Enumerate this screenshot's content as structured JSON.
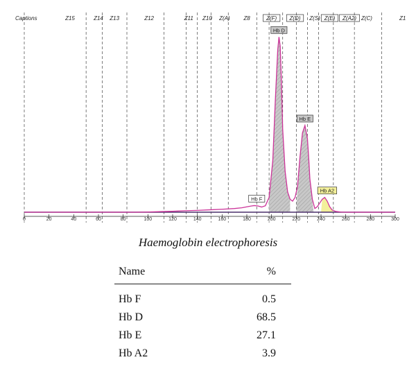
{
  "chart_data": {
    "type": "line",
    "xlim": [
      0,
      300
    ],
    "x_ticks": [
      0,
      20,
      40,
      60,
      80,
      100,
      120,
      140,
      160,
      180,
      200,
      220,
      240,
      260,
      280,
      300
    ],
    "zones": [
      {
        "label": "Captions",
        "x_center": 5,
        "framed": false
      },
      {
        "label": "Z15",
        "x_center": 37,
        "framed": false
      },
      {
        "label": "Z14",
        "x_center": 60,
        "framed": false
      },
      {
        "label": "Z13",
        "x_center": 73,
        "framed": false
      },
      {
        "label": "Z12",
        "x_center": 101,
        "framed": false
      },
      {
        "label": "Z11",
        "x_center": 133,
        "framed": false
      },
      {
        "label": "Z10",
        "x_center": 148,
        "framed": false
      },
      {
        "label": "Z(A)",
        "x_center": 162,
        "framed": false
      },
      {
        "label": "Z8",
        "x_center": 180,
        "framed": false
      },
      {
        "label": "Z(F)",
        "x_center": 200,
        "framed": true
      },
      {
        "label": "Z(D)",
        "x_center": 219,
        "framed": true
      },
      {
        "label": "Z(S)",
        "x_center": 235,
        "framed": false
      },
      {
        "label": "Z(E)",
        "x_center": 247,
        "framed": true
      },
      {
        "label": "Z(A2)",
        "x_center": 263,
        "framed": true
      },
      {
        "label": "Z(C)",
        "x_center": 277,
        "framed": false
      },
      {
        "label": "Z1",
        "x_center": 306,
        "framed": false
      }
    ],
    "zone_boundaries": [
      0,
      50,
      63,
      83,
      113,
      131,
      140,
      151,
      165,
      188,
      198,
      209,
      220,
      229,
      238,
      250,
      267,
      289
    ],
    "series": [
      {
        "x": [
          0,
          90,
          100,
          110,
          120,
          130,
          140,
          150,
          160,
          170,
          176,
          180,
          183,
          186,
          189,
          192,
          195,
          198,
          201,
          203,
          205,
          206,
          207,
          208,
          209,
          211,
          213,
          215,
          217,
          219,
          221,
          223,
          225,
          227,
          229,
          230,
          231,
          233,
          235,
          237,
          239,
          241,
          243,
          245,
          247,
          249,
          252,
          256,
          260,
          300
        ],
        "y": [
          0,
          0,
          0.1,
          0.3,
          0.5,
          0.8,
          1.0,
          1.3,
          1.6,
          2.0,
          2.4,
          2.9,
          3.3,
          3.6,
          3.4,
          2.8,
          3.5,
          8,
          28,
          60,
          88,
          95,
          90,
          70,
          45,
          22,
          11,
          7,
          6,
          8,
          14,
          30,
          43,
          47,
          40,
          30,
          18,
          7,
          2,
          3,
          5,
          7,
          8,
          6,
          3,
          1.2,
          0.4,
          0.1,
          0,
          0
        ]
      }
    ],
    "peaks": [
      {
        "label": "Hb F",
        "x": 188,
        "y": 3.6,
        "color": "#ffffff"
      },
      {
        "label": "Hb D",
        "x": 206,
        "y": 95,
        "color": "#c8c8c8"
      },
      {
        "label": "Hb E",
        "x": 227,
        "y": 47,
        "color": "#c8c8c8"
      },
      {
        "label": "Hb A2",
        "x": 245,
        "y": 8,
        "color": "#f3f09a"
      }
    ],
    "colors": {
      "curve": "#cc3399",
      "shade": "#c8c8c8",
      "a2_fill": "#f3f09a",
      "baseline": "#4a2f6a"
    }
  },
  "caption": "Haemoglobin electrophoresis",
  "table": {
    "headers": {
      "name": "Name",
      "pct": "%"
    },
    "rows": [
      {
        "name": "Hb F",
        "pct": "0.5"
      },
      {
        "name": "Hb D",
        "pct": "68.5"
      },
      {
        "name": "Hb E",
        "pct": "27.1"
      },
      {
        "name": "Hb A2",
        "pct": "3.9"
      }
    ]
  }
}
